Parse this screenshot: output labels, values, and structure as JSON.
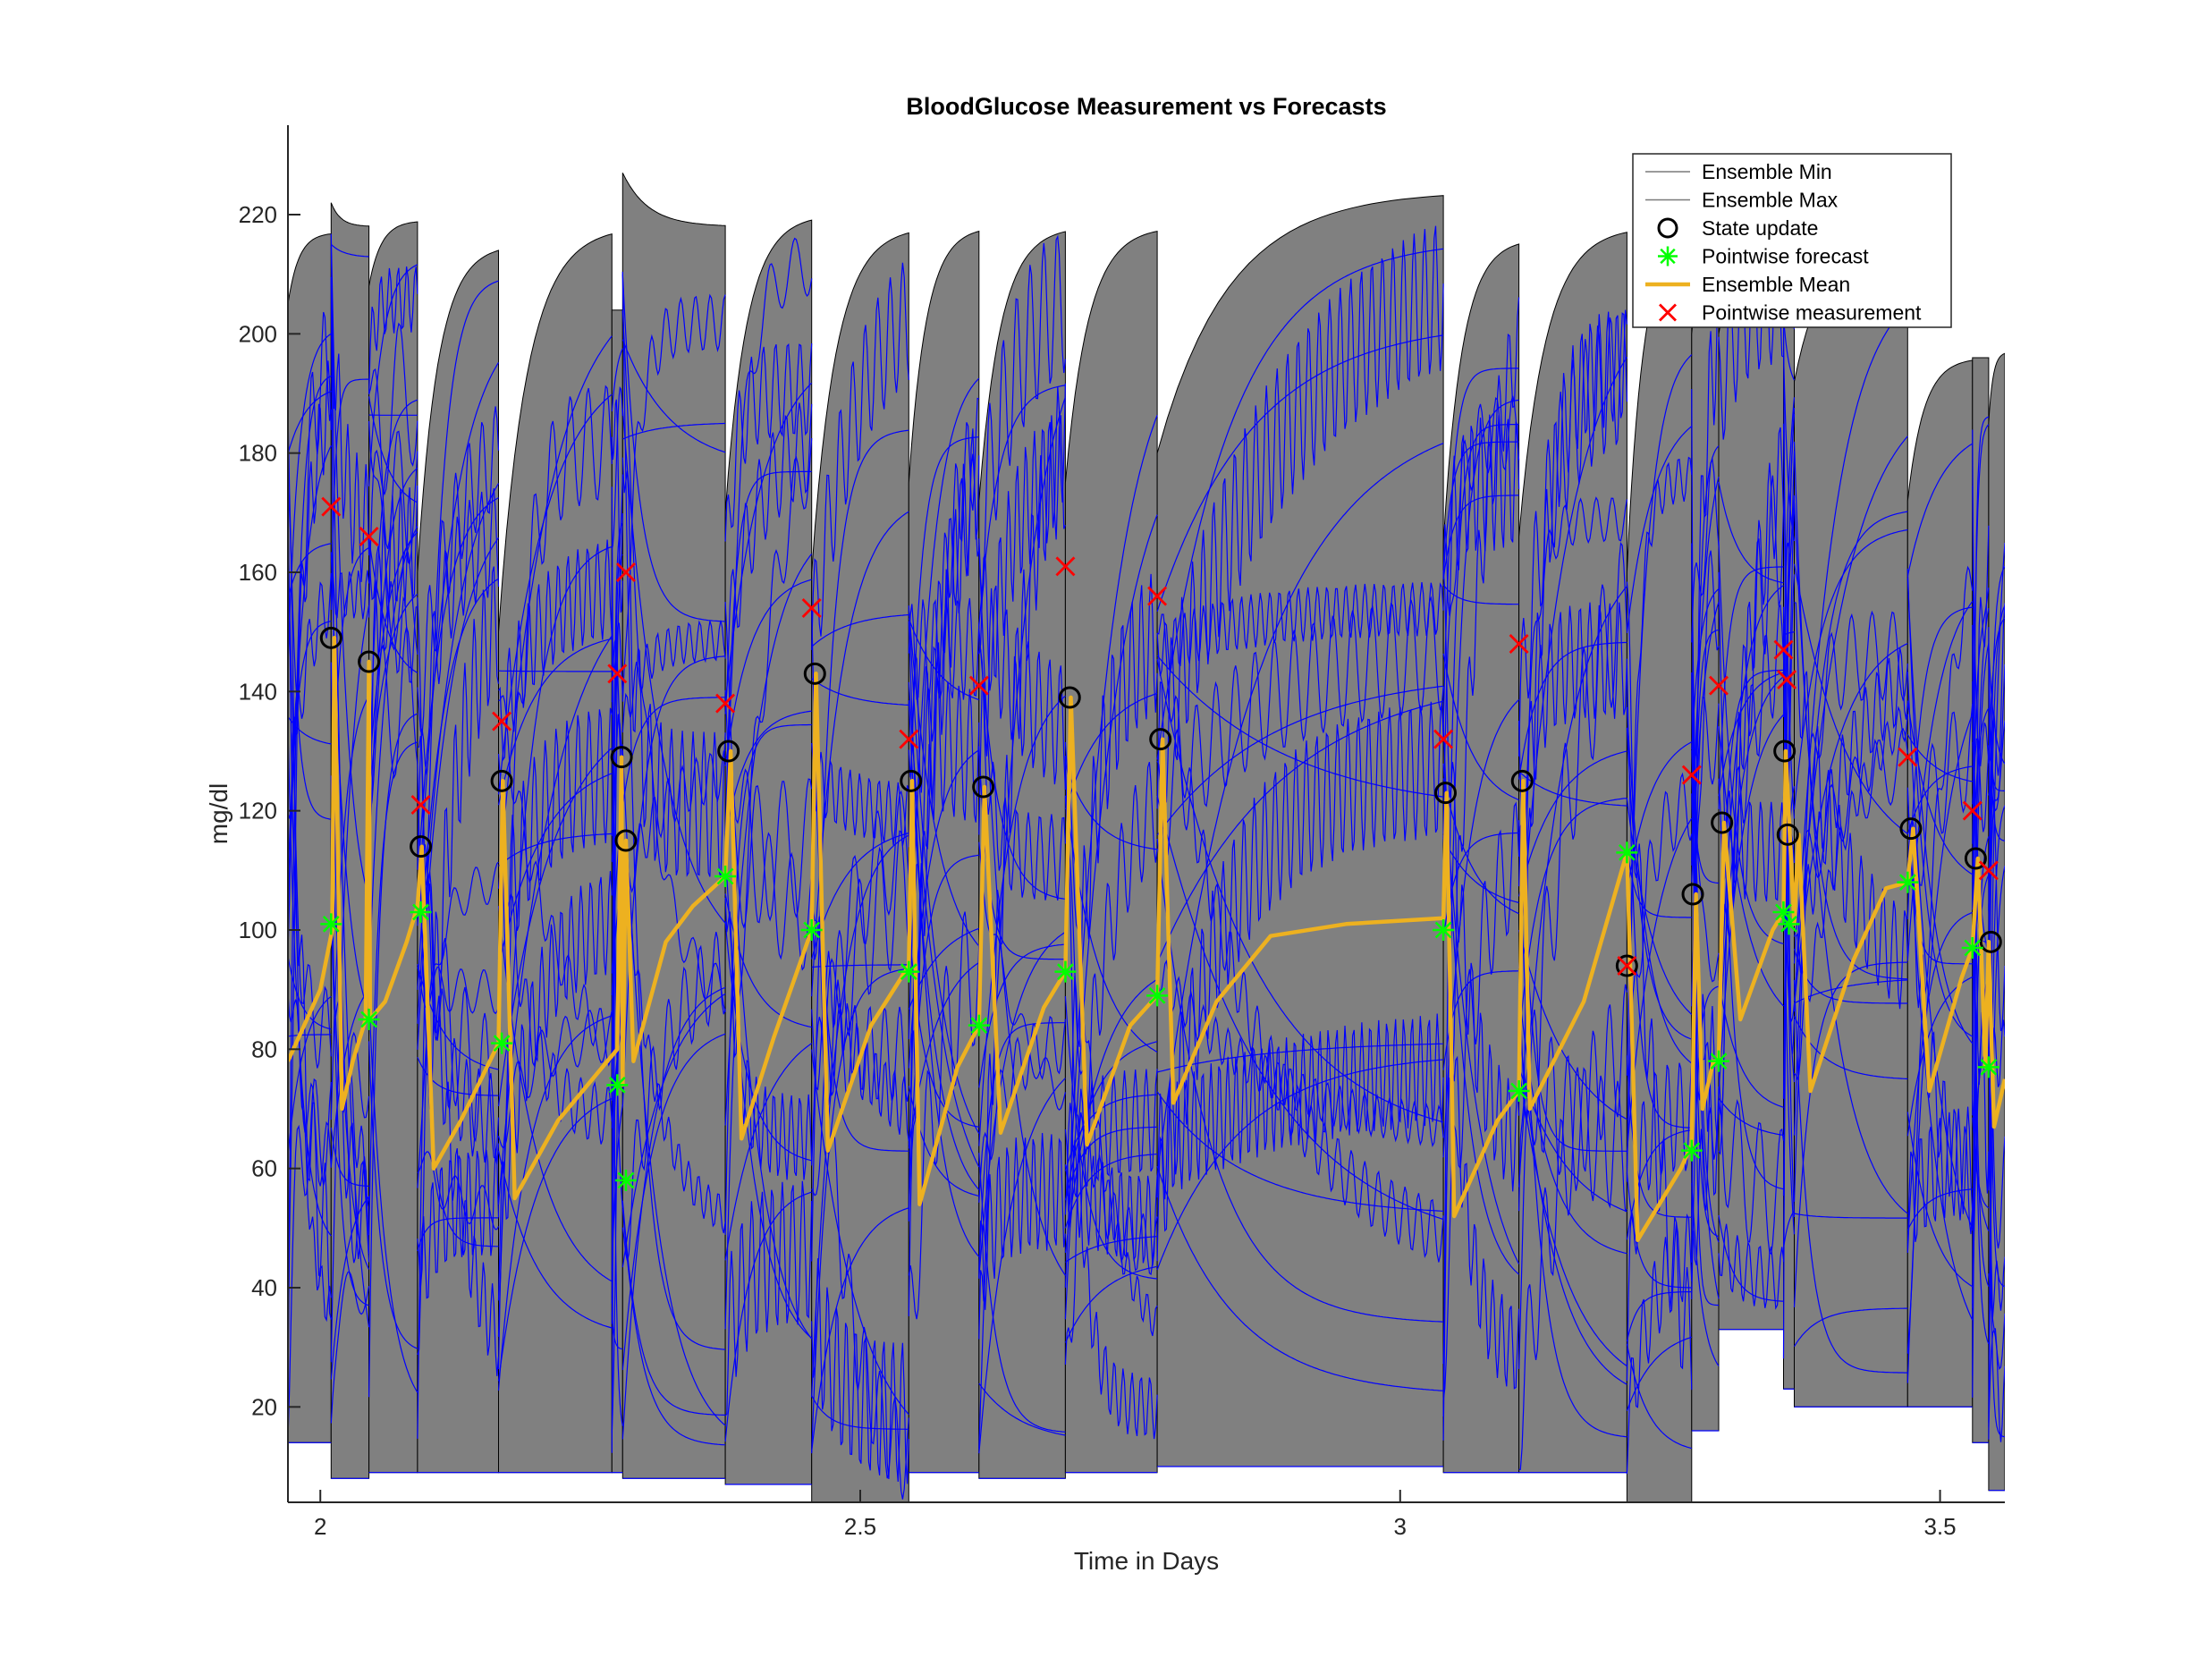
{
  "chart_data": {
    "type": "line",
    "title": "BloodGlucose Measurement vs Forecasts",
    "xlabel": "Time in Days",
    "ylabel": "mg/dl",
    "xlim": [
      1.97,
      3.56
    ],
    "ylim": [
      4,
      235
    ],
    "xticks": [
      2,
      2.5,
      3,
      3.5
    ],
    "xtick_labels": [
      "2",
      "2.5",
      "3",
      "3.5"
    ],
    "yticks": [
      20,
      40,
      60,
      80,
      100,
      120,
      140,
      160,
      180,
      200,
      220
    ],
    "ytick_labels": [
      "20",
      "40",
      "60",
      "80",
      "100",
      "120",
      "140",
      "160",
      "180",
      "200",
      "220"
    ],
    "legend": {
      "placement": "top-right",
      "entries": [
        {
          "label": "Ensemble Min",
          "style": "thin-line"
        },
        {
          "label": "Ensemble Max",
          "style": "thin-line"
        },
        {
          "label": "State update",
          "style": "circle"
        },
        {
          "label": "Pointwise forecast",
          "style": "star"
        },
        {
          "label": "Ensemble Mean",
          "style": "thick-line"
        },
        {
          "label": "Pointwise measurement",
          "style": "x"
        }
      ]
    },
    "colors": {
      "band": "#808080",
      "ensemble": "#0000ff",
      "mean": "#edb120",
      "state_update": "#000000",
      "forecast": "#00ff00",
      "measurement": "#ff0000",
      "axis": "#262626"
    },
    "segments": [
      {
        "t0": 1.97,
        "t1": 2.01,
        "min": 14,
        "max_start": 205,
        "max_end": 217
      },
      {
        "t0": 2.01,
        "t1": 2.045,
        "min": 8,
        "max_start": 222,
        "max_end": 218
      },
      {
        "t0": 2.045,
        "t1": 2.09,
        "min": 9,
        "max_start": 208,
        "max_end": 219
      },
      {
        "t0": 2.09,
        "t1": 2.165,
        "min": 9,
        "max_start": 160,
        "max_end": 215
      },
      {
        "t0": 2.165,
        "t1": 2.27,
        "min": 9,
        "max_start": 150,
        "max_end": 218
      },
      {
        "t0": 2.27,
        "t1": 2.28,
        "min": 9,
        "max_start": 204,
        "max_end": 204
      },
      {
        "t0": 2.28,
        "t1": 2.375,
        "min": 8,
        "max_start": 227,
        "max_end": 218
      },
      {
        "t0": 2.375,
        "t1": 2.455,
        "min": 7,
        "max_start": 170,
        "max_end": 220
      },
      {
        "t0": 2.455,
        "t1": 2.545,
        "min": 3,
        "max_start": 160,
        "max_end": 218
      },
      {
        "t0": 2.545,
        "t1": 2.61,
        "min": 9,
        "max_start": 175,
        "max_end": 218
      },
      {
        "t0": 2.61,
        "t1": 2.69,
        "min": 8,
        "max_start": 172,
        "max_end": 218
      },
      {
        "t0": 2.69,
        "t1": 2.775,
        "min": 9,
        "max_start": 175,
        "max_end": 218
      },
      {
        "t0": 2.775,
        "t1": 3.04,
        "min": 10,
        "max_start": 180,
        "max_end": 224
      },
      {
        "t0": 3.04,
        "t1": 3.11,
        "min": 9,
        "max_start": 165,
        "max_end": 216
      },
      {
        "t0": 3.11,
        "t1": 3.21,
        "min": 9,
        "max_start": 166,
        "max_end": 218
      },
      {
        "t0": 3.21,
        "t1": 3.27,
        "min": 4,
        "max_start": 160,
        "max_end": 218
      },
      {
        "t0": 3.27,
        "t1": 3.295,
        "min": 16,
        "max_start": 200,
        "max_end": 214
      },
      {
        "t0": 3.295,
        "t1": 3.355,
        "min": 33,
        "max_start": 200,
        "max_end": 216
      },
      {
        "t0": 3.355,
        "t1": 3.365,
        "min": 23,
        "max_start": 214,
        "max_end": 214
      },
      {
        "t0": 3.365,
        "t1": 3.47,
        "min": 20,
        "max_start": 192,
        "max_end": 216
      },
      {
        "t0": 3.47,
        "t1": 3.53,
        "min": 20,
        "max_start": 172,
        "max_end": 196
      },
      {
        "t0": 3.53,
        "t1": 3.545,
        "min": 14,
        "max_start": 196,
        "max_end": 196
      },
      {
        "t0": 3.545,
        "t1": 3.56,
        "min": 6,
        "max_start": 185,
        "max_end": 197
      }
    ],
    "series": [
      {
        "name": "Ensemble Mean",
        "x": [
          1.97,
          2.0,
          2.011,
          2.013,
          2.02,
          2.03,
          2.042,
          2.045,
          2.046,
          2.06,
          2.08,
          2.09,
          2.094,
          2.105,
          2.13,
          2.165,
          2.169,
          2.18,
          2.22,
          2.275,
          2.279,
          2.28,
          2.283,
          2.29,
          2.32,
          2.345,
          2.375,
          2.38,
          2.39,
          2.42,
          2.455,
          2.459,
          2.47,
          2.51,
          2.545,
          2.548,
          2.555,
          2.59,
          2.61,
          2.615,
          2.63,
          2.67,
          2.69,
          2.695,
          2.71,
          2.75,
          2.775,
          2.78,
          2.79,
          2.83,
          2.88,
          2.95,
          3.04,
          3.043,
          3.05,
          3.09,
          3.11,
          3.114,
          3.12,
          3.17,
          3.21,
          3.213,
          3.22,
          3.26,
          3.27,
          3.274,
          3.28,
          3.29,
          3.295,
          3.3,
          3.315,
          3.345,
          3.355,
          3.357,
          3.365,
          3.369,
          3.38,
          3.42,
          3.45,
          3.47,
          3.475,
          3.49,
          3.52,
          3.53,
          3.535,
          3.542,
          3.545,
          3.55,
          3.56
        ],
        "y": [
          78,
          90,
          100,
          149,
          70,
          78,
          85,
          145,
          85,
          88,
          98,
          104,
          114,
          60,
          68,
          81,
          125,
          55,
          68,
          80,
          129,
          74,
          115,
          78,
          98,
          104,
          109,
          130,
          65,
          82,
          100,
          143,
          63,
          84,
          94,
          125,
          54,
          77,
          84,
          124,
          66,
          87,
          93,
          139,
          64,
          84,
          89,
          132,
          71,
          88,
          99,
          101,
          102,
          123,
          52,
          68,
          73,
          125,
          70,
          88,
          113,
          94,
          48,
          60,
          64,
          106,
          70,
          78,
          78,
          118,
          85,
          100,
          103,
          130,
          101,
          116,
          73,
          95,
          107,
          108,
          117,
          73,
          92,
          97,
          112,
          77,
          98,
          67,
          75
        ]
      }
    ],
    "state_update": [
      {
        "x": 2.01,
        "y": 149
      },
      {
        "x": 2.045,
        "y": 145
      },
      {
        "x": 2.093,
        "y": 114
      },
      {
        "x": 2.168,
        "y": 125
      },
      {
        "x": 2.279,
        "y": 129
      },
      {
        "x": 2.283,
        "y": 115
      },
      {
        "x": 2.378,
        "y": 130
      },
      {
        "x": 2.458,
        "y": 143
      },
      {
        "x": 2.547,
        "y": 125
      },
      {
        "x": 2.614,
        "y": 124
      },
      {
        "x": 2.694,
        "y": 139
      },
      {
        "x": 2.778,
        "y": 132
      },
      {
        "x": 3.042,
        "y": 123
      },
      {
        "x": 3.113,
        "y": 125
      },
      {
        "x": 3.21,
        "y": 94
      },
      {
        "x": 3.271,
        "y": 106
      },
      {
        "x": 3.298,
        "y": 118
      },
      {
        "x": 3.356,
        "y": 130
      },
      {
        "x": 3.359,
        "y": 116
      },
      {
        "x": 3.473,
        "y": 117
      },
      {
        "x": 3.533,
        "y": 112
      },
      {
        "x": 3.547,
        "y": 98
      }
    ],
    "pointwise_forecast": [
      {
        "x": 2.01,
        "y": 101
      },
      {
        "x": 2.045,
        "y": 85
      },
      {
        "x": 2.093,
        "y": 103
      },
      {
        "x": 2.168,
        "y": 81
      },
      {
        "x": 2.275,
        "y": 74
      },
      {
        "x": 2.283,
        "y": 58
      },
      {
        "x": 2.375,
        "y": 109
      },
      {
        "x": 2.455,
        "y": 100
      },
      {
        "x": 2.545,
        "y": 93
      },
      {
        "x": 2.61,
        "y": 84
      },
      {
        "x": 2.69,
        "y": 93
      },
      {
        "x": 2.775,
        "y": 89
      },
      {
        "x": 3.04,
        "y": 100
      },
      {
        "x": 3.11,
        "y": 73
      },
      {
        "x": 3.21,
        "y": 113
      },
      {
        "x": 3.27,
        "y": 63
      },
      {
        "x": 3.295,
        "y": 78
      },
      {
        "x": 3.355,
        "y": 103
      },
      {
        "x": 3.36,
        "y": 101
      },
      {
        "x": 3.47,
        "y": 108
      },
      {
        "x": 3.53,
        "y": 97
      },
      {
        "x": 3.545,
        "y": 77
      }
    ],
    "pointwise_measurement": [
      {
        "x": 2.01,
        "y": 171
      },
      {
        "x": 2.045,
        "y": 166
      },
      {
        "x": 2.093,
        "y": 121
      },
      {
        "x": 2.168,
        "y": 135
      },
      {
        "x": 2.275,
        "y": 143
      },
      {
        "x": 2.283,
        "y": 160
      },
      {
        "x": 2.375,
        "y": 138
      },
      {
        "x": 2.455,
        "y": 154
      },
      {
        "x": 2.545,
        "y": 132
      },
      {
        "x": 2.61,
        "y": 141
      },
      {
        "x": 2.69,
        "y": 161
      },
      {
        "x": 2.775,
        "y": 156
      },
      {
        "x": 3.04,
        "y": 132
      },
      {
        "x": 3.11,
        "y": 148
      },
      {
        "x": 3.21,
        "y": 94
      },
      {
        "x": 3.27,
        "y": 126
      },
      {
        "x": 3.295,
        "y": 141
      },
      {
        "x": 3.355,
        "y": 147
      },
      {
        "x": 3.358,
        "y": 142
      },
      {
        "x": 3.47,
        "y": 129
      },
      {
        "x": 3.53,
        "y": 120
      },
      {
        "x": 3.545,
        "y": 110
      }
    ]
  }
}
